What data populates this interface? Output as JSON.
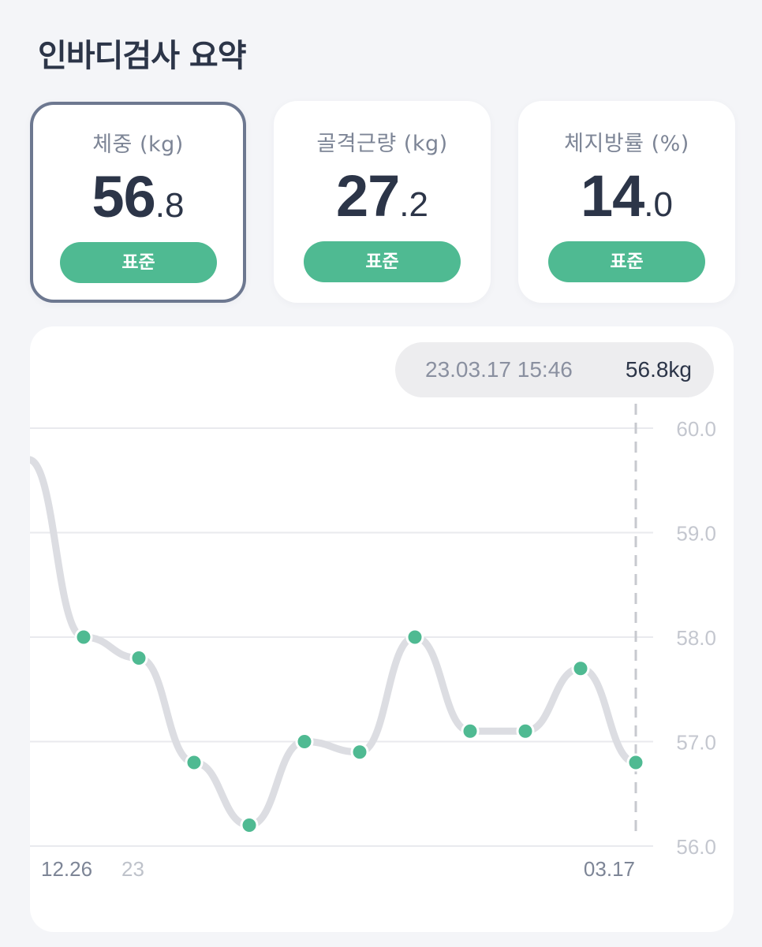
{
  "header": {
    "title": "인바디검사 요약"
  },
  "cards": [
    {
      "label": "체중 (kg)",
      "int": "56",
      "dec": ".8",
      "badge": "표준",
      "selected": true
    },
    {
      "label": "골격근량 (kg)",
      "int": "27",
      "dec": ".2",
      "badge": "표준",
      "selected": false
    },
    {
      "label": "체지방률 (%)",
      "int": "14",
      "dec": ".0",
      "badge": "표준",
      "selected": false
    }
  ],
  "tooltip": {
    "datetime": "23.03.17 15:46",
    "value": "56.8kg"
  },
  "colors": {
    "accent": "#4fba92",
    "text_dark": "#2c3548",
    "text_muted": "#7d8596",
    "line": "#dcdde2",
    "selected_border": "#6d7890"
  },
  "chart_data": {
    "type": "line",
    "x_labels": [
      "12.26",
      "23",
      "03.17"
    ],
    "y_ticks": [
      "60.0",
      "59.0",
      "58.0",
      "57.0",
      "56.0"
    ],
    "ylim": [
      56,
      60
    ],
    "series": [
      {
        "values": [
          59.7,
          58.0,
          57.8,
          56.8,
          56.2,
          57.0,
          56.9,
          58.0,
          57.1,
          57.1,
          57.7,
          56.8
        ]
      }
    ],
    "selected_point": "03.17"
  }
}
